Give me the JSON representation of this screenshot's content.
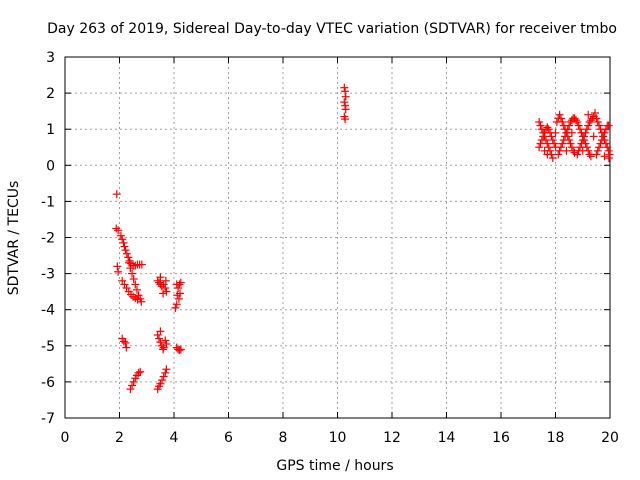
{
  "chart_data": {
    "type": "scatter",
    "title": "Day 263 of 2019, Sidereal Day-to-day VTEC variation (SDTVAR) for receiver tmbo",
    "xlabel": "GPS time / hours",
    "ylabel": "SDTVAR / TECUs",
    "xlim": [
      0,
      20
    ],
    "ylim": [
      -7,
      3
    ],
    "xticks": [
      "0",
      "2",
      "4",
      "6",
      "8",
      "10",
      "12",
      "14",
      "16",
      "18",
      "20"
    ],
    "yticks": [
      "3",
      "2",
      "1",
      "0",
      "-1",
      "-2",
      "-3",
      "-4",
      "-5",
      "-6",
      "-7"
    ],
    "grid": true,
    "marker": "plus",
    "colors": {
      "points": "#ff0000",
      "grid": "#a0a0a0",
      "axis": "#000000"
    },
    "series": [
      {
        "name": "early-scatter",
        "points": [
          [
            1.9,
            -0.8
          ],
          [
            1.88,
            -1.75
          ],
          [
            1.95,
            -1.8
          ],
          [
            1.92,
            -2.8
          ],
          [
            1.95,
            -2.95
          ],
          [
            2.05,
            -1.95
          ],
          [
            2.1,
            -2.05
          ],
          [
            2.15,
            -2.15
          ],
          [
            2.18,
            -2.25
          ],
          [
            2.22,
            -2.35
          ],
          [
            2.27,
            -2.45
          ],
          [
            2.32,
            -2.55
          ],
          [
            2.37,
            -2.65
          ],
          [
            2.42,
            -2.72
          ],
          [
            2.5,
            -2.78
          ],
          [
            2.58,
            -2.78
          ],
          [
            2.66,
            -2.75
          ],
          [
            2.74,
            -2.75
          ],
          [
            2.82,
            -2.75
          ],
          [
            2.35,
            -2.7
          ],
          [
            2.4,
            -2.85
          ],
          [
            2.46,
            -3.0
          ],
          [
            2.52,
            -3.15
          ],
          [
            2.58,
            -3.3
          ],
          [
            2.64,
            -3.45
          ],
          [
            2.7,
            -3.6
          ],
          [
            2.76,
            -3.7
          ],
          [
            2.8,
            -3.78
          ],
          [
            2.1,
            -3.2
          ],
          [
            2.18,
            -3.3
          ],
          [
            2.26,
            -3.4
          ],
          [
            2.34,
            -3.5
          ],
          [
            2.42,
            -3.58
          ],
          [
            2.5,
            -3.64
          ],
          [
            2.58,
            -3.68
          ],
          [
            2.66,
            -3.72
          ],
          [
            2.1,
            -4.8
          ],
          [
            2.16,
            -4.88
          ],
          [
            2.22,
            -4.92
          ],
          [
            2.25,
            -5.05
          ],
          [
            2.4,
            -6.2
          ],
          [
            2.46,
            -6.1
          ],
          [
            2.52,
            -6.0
          ],
          [
            2.58,
            -5.9
          ],
          [
            2.64,
            -5.82
          ],
          [
            2.7,
            -5.75
          ],
          [
            2.76,
            -5.72
          ],
          [
            3.4,
            -3.2
          ],
          [
            3.45,
            -3.25
          ],
          [
            3.5,
            -3.3
          ],
          [
            3.55,
            -3.35
          ],
          [
            3.62,
            -3.3
          ],
          [
            3.68,
            -3.4
          ],
          [
            3.72,
            -3.5
          ],
          [
            3.5,
            -3.1
          ],
          [
            3.6,
            -3.55
          ],
          [
            3.7,
            -3.2
          ],
          [
            3.4,
            -4.7
          ],
          [
            3.45,
            -4.8
          ],
          [
            3.5,
            -4.9
          ],
          [
            3.55,
            -5.0
          ],
          [
            3.62,
            -5.05
          ],
          [
            3.68,
            -4.85
          ],
          [
            3.72,
            -4.95
          ],
          [
            3.5,
            -4.6
          ],
          [
            3.6,
            -5.1
          ],
          [
            3.4,
            -6.2
          ],
          [
            3.45,
            -6.12
          ],
          [
            3.5,
            -6.05
          ],
          [
            3.56,
            -5.95
          ],
          [
            3.62,
            -5.85
          ],
          [
            3.68,
            -5.75
          ],
          [
            3.72,
            -5.65
          ],
          [
            4.1,
            -3.3
          ],
          [
            4.15,
            -3.4
          ],
          [
            4.2,
            -3.3
          ],
          [
            4.25,
            -3.25
          ],
          [
            4.12,
            -3.6
          ],
          [
            4.18,
            -3.7
          ],
          [
            4.1,
            -3.85
          ],
          [
            4.05,
            -3.95
          ],
          [
            4.22,
            -3.55
          ],
          [
            4.1,
            -5.05
          ],
          [
            4.15,
            -5.1
          ],
          [
            4.2,
            -5.12
          ],
          [
            4.25,
            -5.1
          ]
        ]
      },
      {
        "name": "midday-scatter",
        "points": [
          [
            10.25,
            2.15
          ],
          [
            10.28,
            2.05
          ],
          [
            10.3,
            1.9
          ],
          [
            10.25,
            1.75
          ],
          [
            10.28,
            1.65
          ],
          [
            10.3,
            1.55
          ],
          [
            10.25,
            1.35
          ],
          [
            10.28,
            1.28
          ]
        ]
      },
      {
        "name": "late-scatter",
        "points": [
          [
            17.4,
            1.2
          ],
          [
            17.45,
            1.1
          ],
          [
            17.5,
            1.0
          ],
          [
            17.55,
            0.9
          ],
          [
            17.6,
            0.8
          ],
          [
            17.65,
            0.7
          ],
          [
            17.7,
            0.6
          ],
          [
            17.75,
            0.5
          ],
          [
            17.8,
            0.4
          ],
          [
            17.85,
            0.3
          ],
          [
            17.9,
            0.2
          ],
          [
            17.4,
            0.5
          ],
          [
            17.45,
            0.6
          ],
          [
            17.5,
            0.7
          ],
          [
            17.55,
            0.8
          ],
          [
            17.6,
            0.9
          ],
          [
            17.65,
            1.0
          ],
          [
            17.7,
            1.05
          ],
          [
            17.75,
            1.0
          ],
          [
            17.8,
            0.9
          ],
          [
            17.85,
            0.8
          ],
          [
            17.9,
            0.7
          ],
          [
            17.95,
            0.6
          ],
          [
            18.0,
            0.5
          ],
          [
            18.05,
            1.2
          ],
          [
            18.1,
            1.3
          ],
          [
            18.15,
            1.4
          ],
          [
            18.2,
            1.3
          ],
          [
            18.25,
            1.2
          ],
          [
            18.3,
            1.1
          ],
          [
            18.35,
            1.0
          ],
          [
            18.4,
            0.9
          ],
          [
            18.45,
            0.8
          ],
          [
            18.5,
            0.7
          ],
          [
            18.55,
            0.6
          ],
          [
            18.6,
            0.5
          ],
          [
            18.65,
            0.4
          ],
          [
            18.7,
            0.35
          ],
          [
            18.1,
            0.3
          ],
          [
            18.15,
            0.4
          ],
          [
            18.2,
            0.5
          ],
          [
            18.25,
            0.6
          ],
          [
            18.3,
            0.7
          ],
          [
            18.35,
            0.8
          ],
          [
            18.4,
            0.9
          ],
          [
            18.45,
            1.0
          ],
          [
            18.5,
            1.1
          ],
          [
            18.55,
            1.2
          ],
          [
            18.6,
            1.25
          ],
          [
            18.65,
            1.3
          ],
          [
            18.7,
            1.3
          ],
          [
            18.75,
            1.25
          ],
          [
            18.8,
            1.2
          ],
          [
            18.85,
            1.1
          ],
          [
            18.9,
            1.0
          ],
          [
            18.95,
            0.9
          ],
          [
            19.0,
            0.8
          ],
          [
            19.05,
            0.7
          ],
          [
            19.1,
            0.6
          ],
          [
            19.15,
            0.5
          ],
          [
            19.2,
            0.4
          ],
          [
            19.25,
            0.3
          ],
          [
            19.3,
            0.25
          ],
          [
            18.8,
            0.3
          ],
          [
            18.85,
            0.4
          ],
          [
            18.9,
            0.5
          ],
          [
            18.95,
            0.6
          ],
          [
            19.0,
            0.7
          ],
          [
            19.05,
            0.8
          ],
          [
            19.1,
            0.9
          ],
          [
            19.15,
            1.0
          ],
          [
            19.2,
            1.1
          ],
          [
            19.25,
            1.2
          ],
          [
            19.3,
            1.25
          ],
          [
            19.35,
            1.3
          ],
          [
            19.2,
            1.4
          ],
          [
            19.4,
            1.35
          ],
          [
            19.45,
            1.45
          ],
          [
            19.5,
            1.3
          ],
          [
            19.55,
            1.2
          ],
          [
            19.6,
            1.1
          ],
          [
            19.65,
            1.0
          ],
          [
            19.7,
            0.9
          ],
          [
            19.75,
            0.8
          ],
          [
            19.8,
            0.7
          ],
          [
            19.85,
            0.6
          ],
          [
            19.9,
            0.5
          ],
          [
            19.95,
            0.4
          ],
          [
            19.98,
            0.3
          ],
          [
            19.5,
            0.3
          ],
          [
            19.55,
            0.4
          ],
          [
            19.6,
            0.5
          ],
          [
            19.65,
            0.6
          ],
          [
            19.7,
            0.7
          ],
          [
            19.75,
            0.8
          ],
          [
            19.8,
            0.9
          ],
          [
            19.85,
            1.0
          ],
          [
            19.9,
            1.1
          ],
          [
            19.95,
            1.1
          ],
          [
            17.6,
            0.4
          ],
          [
            17.7,
            0.3
          ],
          [
            18.0,
            0.9
          ],
          [
            18.4,
            0.4
          ],
          [
            18.6,
            0.9
          ],
          [
            19.0,
            0.4
          ],
          [
            19.4,
            0.8
          ],
          [
            19.8,
            0.25
          ],
          [
            19.96,
            0.2
          ]
        ]
      }
    ]
  }
}
